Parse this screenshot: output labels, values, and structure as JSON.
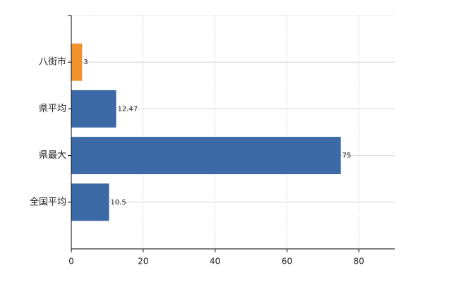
{
  "chart_data": {
    "type": "barh",
    "categories": [
      "八街市",
      "県平均",
      "県最大",
      "全国平均"
    ],
    "values": [
      3,
      12.47,
      75,
      10.5
    ],
    "colors": [
      "#f0922e",
      "#3b6aa6",
      "#3b6aa6",
      "#3b6aa6"
    ],
    "xlim": [
      0,
      90
    ],
    "xticks": [
      0,
      20,
      40,
      60,
      80
    ],
    "grid": true
  }
}
